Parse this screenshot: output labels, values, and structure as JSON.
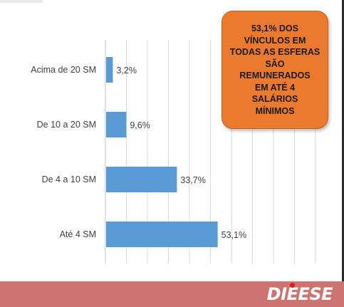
{
  "callout": {
    "text": "53,1% DOS\nVÍNCULOS EM\nTODAS AS ESFERAS\nSÃO\nREMUNERADOS\nEM ATÉ 4\nSALÁRIOS\nMÍNIMOS",
    "bg_color": "#ec7a2e"
  },
  "footer": {
    "logo_text": "DIEESE",
    "bg_color": "#cd7470"
  },
  "colors": {
    "bar": "#5b9bd5",
    "grid": "#d9d9d9",
    "axis": "#bfbfbf"
  },
  "chart_data": {
    "type": "bar",
    "orientation": "horizontal",
    "categories": [
      "Acima de 20 SM",
      "De 10 a 20 SM",
      "De 4 a 10 SM",
      "Até 4 SM"
    ],
    "values": [
      3.2,
      9.6,
      33.7,
      53.1
    ],
    "value_labels": [
      "3,2%",
      "9,6%",
      "33,7%",
      "53,1%"
    ],
    "xlim": [
      0,
      100
    ],
    "grid": true,
    "title": "",
    "xlabel": "",
    "ylabel": ""
  }
}
